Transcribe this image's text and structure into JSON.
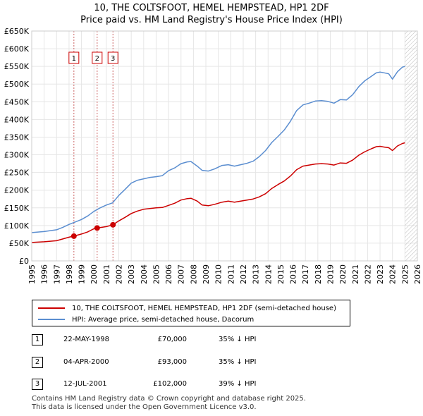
{
  "title_line1": "10, THE COLTSFOOT, HEMEL HEMPSTEAD, HP1 2DF",
  "title_line2": "Price paid vs. HM Land Registry's House Price Index (HPI)",
  "legend": {
    "property_label": "10, THE COLTSFOOT, HEMEL HEMPSTEAD, HP1 2DF (semi-detached house)",
    "hpi_label": "HPI: Average price, semi-detached house, Dacorum"
  },
  "colors": {
    "property": "#cc0000",
    "hpi": "#5b8ed0",
    "vline": "#cc6666",
    "future_hatch": "#cccccc"
  },
  "transactions": [
    {
      "num": "1",
      "date": "22-MAY-1998",
      "price": "£70,000",
      "hpi_diff": "35% ↓ HPI",
      "year": 1998.39,
      "value": 70000
    },
    {
      "num": "2",
      "date": "04-APR-2000",
      "price": "£93,000",
      "hpi_diff": "35% ↓ HPI",
      "year": 2000.26,
      "value": 93000
    },
    {
      "num": "3",
      "date": "12-JUL-2001",
      "price": "£102,000",
      "hpi_diff": "39% ↓ HPI",
      "year": 2001.53,
      "value": 102000
    }
  ],
  "footer_line1": "Contains HM Land Registry data © Crown copyright and database right 2025.",
  "footer_line2": "This data is licensed under the Open Government Licence v3.0.",
  "chart_data": {
    "type": "line",
    "xlim": [
      1995,
      2026
    ],
    "ylim": [
      0,
      650000
    ],
    "x_ticks": [
      "1995",
      "1996",
      "1997",
      "1998",
      "1999",
      "2000",
      "2001",
      "2002",
      "2003",
      "2004",
      "2005",
      "2006",
      "2007",
      "2008",
      "2009",
      "2010",
      "2011",
      "2012",
      "2013",
      "2014",
      "2015",
      "2016",
      "2017",
      "2018",
      "2019",
      "2020",
      "2021",
      "2022",
      "2023",
      "2024",
      "2025",
      "2026"
    ],
    "y_ticks": [
      {
        "value": 0,
        "label": "£0"
      },
      {
        "value": 50000,
        "label": "£50K"
      },
      {
        "value": 100000,
        "label": "£100K"
      },
      {
        "value": 150000,
        "label": "£150K"
      },
      {
        "value": 200000,
        "label": "£200K"
      },
      {
        "value": 250000,
        "label": "£250K"
      },
      {
        "value": 300000,
        "label": "£300K"
      },
      {
        "value": 350000,
        "label": "£350K"
      },
      {
        "value": 400000,
        "label": "£400K"
      },
      {
        "value": 450000,
        "label": "£450K"
      },
      {
        "value": 500000,
        "label": "£500K"
      },
      {
        "value": 550000,
        "label": "£550K"
      },
      {
        "value": 600000,
        "label": "£600K"
      },
      {
        "value": 650000,
        "label": "£650K"
      }
    ],
    "hatch_from": 2025.0,
    "series": [
      {
        "name": "HPI: Average price, semi-detached house, Dacorum",
        "x": [
          1995.0,
          1996.0,
          1997.0,
          1997.5,
          1998.0,
          1998.5,
          1999.0,
          1999.5,
          2000.0,
          2000.5,
          2001.0,
          2001.5,
          2002.0,
          2002.5,
          2003.0,
          2003.5,
          2004.0,
          2004.5,
          2005.0,
          2005.5,
          2006.0,
          2006.5,
          2007.0,
          2007.5,
          2007.8,
          2008.3,
          2008.7,
          2009.2,
          2009.7,
          2010.3,
          2010.8,
          2011.3,
          2011.8,
          2012.3,
          2012.8,
          2013.3,
          2013.8,
          2014.3,
          2014.8,
          2015.3,
          2015.8,
          2016.3,
          2016.8,
          2017.3,
          2017.8,
          2018.3,
          2018.8,
          2019.3,
          2019.8,
          2020.3,
          2020.8,
          2021.3,
          2021.8,
          2022.3,
          2022.7,
          2023.0,
          2023.3,
          2023.7,
          2024.0,
          2024.4,
          2024.8,
          2025.0
        ],
        "values": [
          80000,
          83000,
          88000,
          95000,
          103000,
          110000,
          117000,
          127000,
          140000,
          150000,
          158000,
          164000,
          185000,
          202000,
          220000,
          228000,
          232000,
          236000,
          238000,
          241000,
          255000,
          263000,
          275000,
          280000,
          281000,
          268000,
          256000,
          254000,
          260000,
          270000,
          272000,
          268000,
          272000,
          276000,
          282000,
          295000,
          312000,
          335000,
          352000,
          370000,
          395000,
          425000,
          441000,
          446000,
          452000,
          453000,
          451000,
          446000,
          456000,
          455000,
          470000,
          493000,
          510000,
          522000,
          532000,
          534000,
          532000,
          529000,
          514000,
          535000,
          548000,
          550000
        ]
      },
      {
        "name": "10, THE COLTSFOOT, HEMEL HEMPSTEAD, HP1 2DF (semi-detached house)",
        "x": [
          1995.0,
          1996.0,
          1997.0,
          1997.5,
          1998.0,
          1998.39,
          1999.0,
          1999.5,
          2000.0,
          2000.26,
          2001.0,
          2001.53,
          2002.0,
          2002.5,
          2003.0,
          2003.5,
          2004.0,
          2004.5,
          2005.0,
          2005.5,
          2006.0,
          2006.5,
          2007.0,
          2007.5,
          2007.8,
          2008.3,
          2008.7,
          2009.2,
          2009.7,
          2010.3,
          2010.8,
          2011.3,
          2011.8,
          2012.3,
          2012.8,
          2013.3,
          2013.8,
          2014.3,
          2014.8,
          2015.3,
          2015.8,
          2016.3,
          2016.8,
          2017.3,
          2017.8,
          2018.3,
          2018.8,
          2019.3,
          2019.8,
          2020.3,
          2020.8,
          2021.3,
          2021.8,
          2022.3,
          2022.7,
          2023.0,
          2023.3,
          2023.7,
          2024.0,
          2024.4,
          2024.8,
          2025.0
        ],
        "values": [
          52000,
          54000,
          57000,
          62000,
          67000,
          70000,
          76000,
          82000,
          91000,
          93000,
          97000,
          102000,
          113000,
          123000,
          134000,
          141000,
          146000,
          148000,
          150000,
          151000,
          157000,
          163000,
          172000,
          176000,
          177000,
          169000,
          158000,
          156000,
          160000,
          166000,
          169000,
          166000,
          169000,
          172000,
          175000,
          181000,
          190000,
          205000,
          216000,
          226000,
          240000,
          258000,
          268000,
          271000,
          274000,
          275000,
          274000,
          271000,
          277000,
          276000,
          285000,
          299000,
          309000,
          317000,
          323000,
          324000,
          322000,
          320000,
          312000,
          325000,
          332000,
          334000
        ]
      }
    ]
  }
}
